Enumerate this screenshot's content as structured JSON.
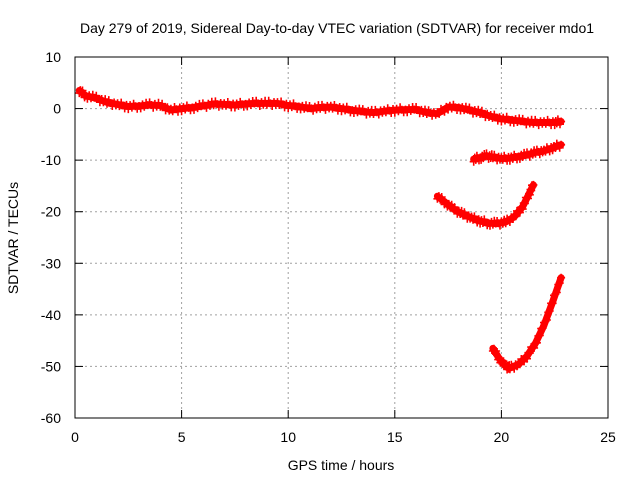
{
  "chart_data": {
    "type": "scatter",
    "title": "Day 279 of 2019, Sidereal Day-to-day VTEC variation (SDTVAR) for receiver mdo1",
    "xlabel": "GPS time / hours",
    "ylabel": "SDTVAR / TECUs",
    "xlim": [
      0,
      25
    ],
    "ylim": [
      -60,
      10
    ],
    "xticks": [
      0,
      5,
      10,
      15,
      20,
      25
    ],
    "yticks": [
      10,
      0,
      -10,
      -20,
      -30,
      -40,
      -50,
      -60
    ],
    "grid": true,
    "series_color": "#ff0000",
    "series": [
      {
        "points": [
          [
            0.2,
            3.5
          ],
          [
            0.5,
            2.5
          ],
          [
            1.0,
            2.0
          ],
          [
            1.5,
            1.2
          ],
          [
            2.0,
            0.8
          ],
          [
            2.5,
            0.4
          ],
          [
            3.0,
            0.5
          ],
          [
            3.5,
            0.7
          ],
          [
            4.0,
            0.6
          ],
          [
            4.5,
            -0.3
          ],
          [
            5.0,
            0.0
          ],
          [
            5.5,
            0.2
          ],
          [
            6.0,
            0.5
          ],
          [
            6.5,
            0.9
          ],
          [
            7.0,
            0.8
          ],
          [
            7.5,
            0.7
          ],
          [
            8.0,
            0.9
          ],
          [
            8.5,
            1.0
          ],
          [
            9.0,
            1.0
          ],
          [
            9.5,
            1.0
          ],
          [
            10.0,
            0.6
          ],
          [
            10.5,
            0.4
          ],
          [
            11.0,
            0.0
          ],
          [
            11.5,
            0.2
          ],
          [
            12.0,
            0.3
          ],
          [
            12.5,
            0.0
          ],
          [
            13.0,
            -0.3
          ],
          [
            13.5,
            -0.6
          ],
          [
            14.0,
            -0.8
          ],
          [
            14.5,
            -0.5
          ],
          [
            15.0,
            -0.3
          ],
          [
            15.5,
            -0.2
          ],
          [
            16.0,
            -0.2
          ],
          [
            16.5,
            -0.8
          ],
          [
            17.0,
            -1.0
          ],
          [
            17.5,
            0.3
          ],
          [
            18.0,
            0.2
          ],
          [
            18.5,
            -0.3
          ],
          [
            19.0,
            -0.8
          ],
          [
            19.5,
            -1.5
          ],
          [
            20.0,
            -2.0
          ],
          [
            20.5,
            -2.2
          ],
          [
            21.0,
            -2.5
          ],
          [
            21.5,
            -2.7
          ],
          [
            22.0,
            -2.7
          ],
          [
            22.5,
            -2.7
          ],
          [
            22.8,
            -2.5
          ]
        ]
      },
      {
        "points": [
          [
            18.7,
            -9.8
          ],
          [
            19.0,
            -9.5
          ],
          [
            19.3,
            -9.2
          ],
          [
            19.6,
            -9.4
          ],
          [
            20.0,
            -9.7
          ],
          [
            20.4,
            -9.6
          ],
          [
            20.8,
            -9.3
          ],
          [
            21.2,
            -9.0
          ],
          [
            21.6,
            -8.5
          ],
          [
            22.0,
            -8.2
          ],
          [
            22.4,
            -7.6
          ],
          [
            22.8,
            -7.0
          ]
        ]
      },
      {
        "points": [
          [
            17.0,
            -17.0
          ],
          [
            17.4,
            -18.3
          ],
          [
            17.8,
            -19.6
          ],
          [
            18.2,
            -20.5
          ],
          [
            18.6,
            -21.2
          ],
          [
            19.0,
            -21.8
          ],
          [
            19.4,
            -22.2
          ],
          [
            19.8,
            -22.3
          ],
          [
            20.2,
            -22.0
          ],
          [
            20.6,
            -21.0
          ],
          [
            21.0,
            -19.0
          ],
          [
            21.3,
            -16.5
          ],
          [
            21.5,
            -14.8
          ]
        ]
      },
      {
        "points": [
          [
            19.6,
            -46.5
          ],
          [
            19.9,
            -48.5
          ],
          [
            20.2,
            -50.0
          ],
          [
            20.4,
            -50.3
          ],
          [
            20.8,
            -49.6
          ],
          [
            21.2,
            -48.0
          ],
          [
            21.6,
            -45.5
          ],
          [
            22.0,
            -42.0
          ],
          [
            22.4,
            -37.5
          ],
          [
            22.8,
            -32.8
          ]
        ]
      }
    ]
  }
}
